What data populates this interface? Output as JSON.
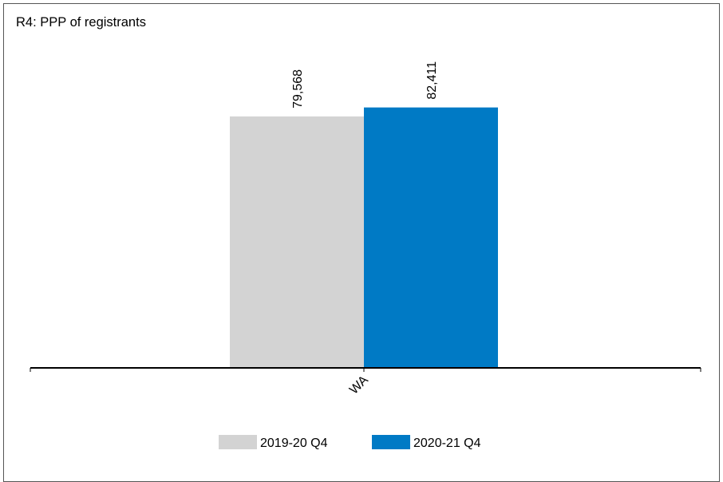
{
  "chart_data": {
    "type": "bar",
    "title": "R4: PPP of registrants",
    "categories": [
      "WA"
    ],
    "series": [
      {
        "name": "2019-20 Q4",
        "values": [
          79568
        ],
        "color": "#d3d3d3",
        "label": "79,568"
      },
      {
        "name": "2020-21 Q4",
        "values": [
          82411
        ],
        "color": "#007ac5",
        "label": "82,411"
      }
    ],
    "ylim": [
      0,
      100000
    ],
    "grid": false,
    "legend": "bottom-center"
  }
}
